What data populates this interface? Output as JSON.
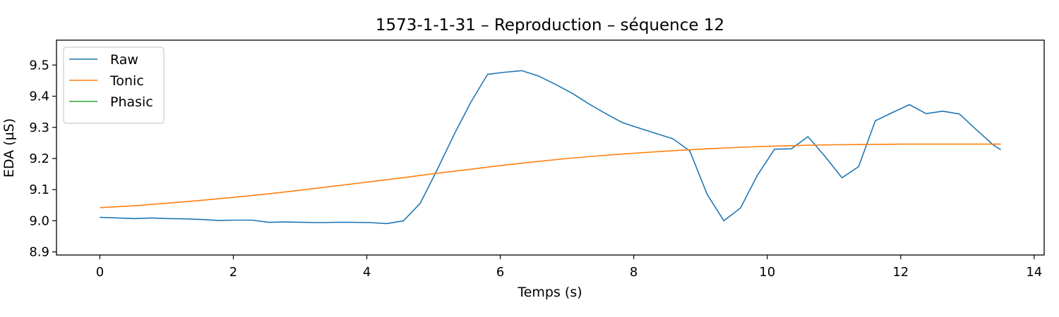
{
  "chart_data": {
    "type": "line",
    "title": "1573-1-1-31 – Reproduction – séquence 12",
    "xlabel": "Temps (s)",
    "ylabel": "EDA (µS)",
    "xlim": [
      -0.65,
      14.15
    ],
    "ylim": [
      8.89,
      9.58
    ],
    "x_ticks": [
      0,
      2,
      4,
      6,
      8,
      10,
      12,
      14
    ],
    "x_tick_labels": [
      "0",
      "2",
      "4",
      "6",
      "8",
      "10",
      "12",
      "14"
    ],
    "y_ticks": [
      8.9,
      9.0,
      9.1,
      9.2,
      9.3,
      9.4,
      9.5
    ],
    "y_tick_labels": [
      "8.9",
      "9.0",
      "9.1",
      "9.2",
      "9.3",
      "9.4",
      "9.5"
    ],
    "grid": false,
    "legend_position": "top-left",
    "series": [
      {
        "name": "Raw",
        "color": "#1f77b4",
        "x": [
          0,
          0.27,
          0.52,
          0.77,
          1.02,
          1.27,
          1.52,
          1.78,
          2.03,
          2.28,
          2.53,
          2.78,
          3.04,
          3.29,
          3.54,
          3.79,
          4.05,
          4.3,
          4.55,
          4.8,
          5.06,
          5.31,
          5.56,
          5.81,
          6.07,
          6.32,
          6.57,
          6.82,
          7.08,
          7.33,
          7.58,
          7.83,
          8.09,
          8.34,
          8.59,
          8.84,
          9.1,
          9.35,
          9.6,
          9.85,
          10.11,
          10.36,
          10.61,
          10.86,
          11.12,
          11.37,
          11.62,
          11.87,
          12.13,
          12.38,
          12.63,
          12.88,
          13.14,
          13.39,
          13.5
        ],
        "values": [
          9.011,
          9.009,
          9.007,
          9.009,
          9.007,
          9.006,
          9.004,
          9.001,
          9.002,
          9.002,
          8.995,
          8.996,
          8.995,
          8.994,
          8.995,
          8.995,
          8.994,
          8.991,
          9.0,
          9.056,
          9.166,
          9.278,
          9.381,
          9.47,
          9.477,
          9.482,
          9.465,
          9.439,
          9.409,
          9.375,
          9.344,
          9.315,
          9.297,
          9.28,
          9.263,
          9.224,
          9.085,
          9.0,
          9.041,
          9.145,
          9.23,
          9.231,
          9.27,
          9.208,
          9.138,
          9.174,
          9.321,
          9.347,
          9.373,
          9.344,
          9.352,
          9.343,
          9.291,
          9.243,
          9.228
        ]
      },
      {
        "name": "Tonic",
        "color": "#ff7f0e",
        "x": [
          0,
          0.5,
          1.0,
          1.5,
          2.0,
          2.5,
          3.0,
          3.5,
          4.0,
          4.5,
          5.0,
          5.5,
          6.0,
          6.5,
          7.0,
          7.5,
          8.0,
          8.5,
          9.0,
          9.5,
          10.0,
          10.5,
          11.0,
          11.5,
          12.0,
          12.5,
          13.0,
          13.5
        ],
        "values": [
          9.042,
          9.048,
          9.056,
          9.065,
          9.075,
          9.086,
          9.098,
          9.111,
          9.124,
          9.137,
          9.151,
          9.164,
          9.177,
          9.189,
          9.2,
          9.209,
          9.217,
          9.224,
          9.23,
          9.235,
          9.239,
          9.242,
          9.244,
          9.245,
          9.246,
          9.246,
          9.246,
          9.246
        ]
      },
      {
        "name": "Phasic",
        "color": "#2ca02c",
        "x": [],
        "values": []
      }
    ]
  }
}
